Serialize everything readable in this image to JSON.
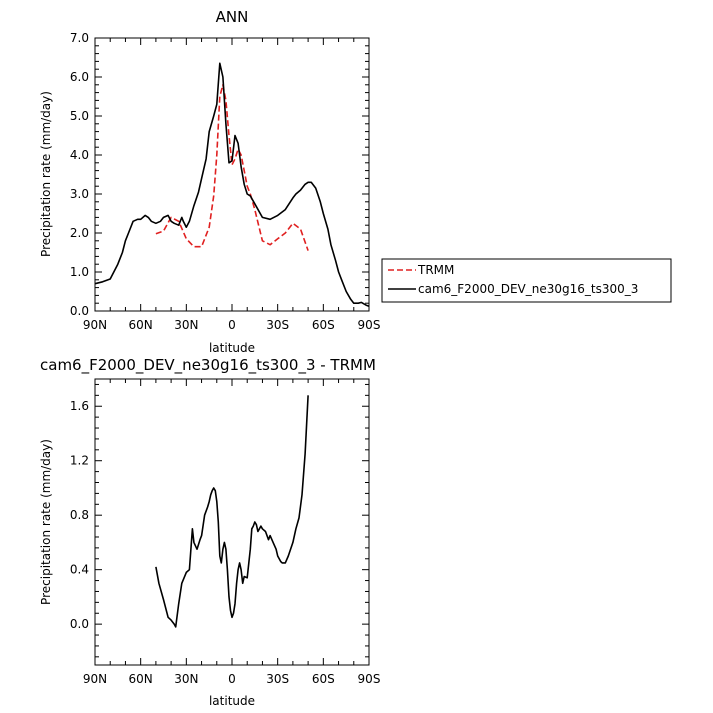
{
  "chart_data": [
    {
      "type": "line",
      "title": "ANN",
      "xlabel": "latitude",
      "ylabel": "Precipitation rate (mm/day)",
      "xlim": [
        90,
        -90
      ],
      "ylim": [
        0,
        7
      ],
      "xticks": [
        90,
        60,
        30,
        0,
        -30,
        -60,
        -90
      ],
      "xtick_labels": [
        "90N",
        "60N",
        "30N",
        "0",
        "30S",
        "60S",
        "90S"
      ],
      "yticks": [
        0,
        1,
        2,
        3,
        4,
        5,
        6,
        7
      ],
      "ytick_labels": [
        "0.0",
        "1.0",
        "2.0",
        "3.0",
        "4.0",
        "5.0",
        "6.0",
        "7.0"
      ],
      "legend_position": "right",
      "series": [
        {
          "name": "TRMM",
          "color": "#e02020",
          "dash": "dashed",
          "x": [
            50,
            45,
            40,
            35,
            30,
            25,
            20,
            15,
            12,
            10,
            8,
            6,
            4,
            2,
            0,
            -2,
            -4,
            -6,
            -8,
            -10,
            -12,
            -15,
            -20,
            -25,
            -30,
            -35,
            -40,
            -45,
            -50
          ],
          "y": [
            1.98,
            2.05,
            2.4,
            2.3,
            1.85,
            1.65,
            1.65,
            2.15,
            2.95,
            4.0,
            5.5,
            5.8,
            5.4,
            4.5,
            3.75,
            3.9,
            4.15,
            4.0,
            3.6,
            3.2,
            3.0,
            2.6,
            1.8,
            1.7,
            1.85,
            2.0,
            2.25,
            2.1,
            1.55
          ]
        },
        {
          "name": "cam6_F2000_DEV_ne30g16_ts300_3",
          "color": "#000000",
          "dash": "solid",
          "x": [
            90,
            85,
            80,
            75,
            72,
            70,
            68,
            65,
            62,
            60,
            57,
            55,
            53,
            50,
            47,
            45,
            42,
            40,
            38,
            35,
            33,
            32,
            30,
            28,
            25,
            22,
            20,
            17,
            15,
            12,
            10,
            8,
            6,
            4,
            2,
            0,
            -2,
            -4,
            -6,
            -8,
            -10,
            -12,
            -15,
            -20,
            -25,
            -30,
            -35,
            -40,
            -42,
            -45,
            -48,
            -50,
            -52,
            -55,
            -58,
            -60,
            -63,
            -65,
            -68,
            -70,
            -72,
            -75,
            -78,
            -80,
            -83,
            -85,
            -88,
            -90
          ],
          "y": [
            0.7,
            0.75,
            0.82,
            1.2,
            1.5,
            1.8,
            2.0,
            2.3,
            2.35,
            2.35,
            2.45,
            2.4,
            2.3,
            2.25,
            2.3,
            2.4,
            2.45,
            2.3,
            2.25,
            2.2,
            2.4,
            2.3,
            2.15,
            2.3,
            2.7,
            3.05,
            3.4,
            3.9,
            4.6,
            5.0,
            5.3,
            6.35,
            6.0,
            4.8,
            3.8,
            3.85,
            4.5,
            4.3,
            3.7,
            3.25,
            3.0,
            2.95,
            2.75,
            2.4,
            2.35,
            2.45,
            2.6,
            2.9,
            3.0,
            3.1,
            3.25,
            3.3,
            3.3,
            3.15,
            2.8,
            2.5,
            2.1,
            1.7,
            1.3,
            1.0,
            0.8,
            0.5,
            0.3,
            0.2,
            0.2,
            0.22,
            0.15,
            0.12
          ]
        }
      ]
    },
    {
      "type": "line",
      "title": "cam6_F2000_DEV_ne30g16_ts300_3 - TRMM",
      "xlabel": "latitude",
      "ylabel": "Precipitation rate (mm/day)",
      "xlim": [
        90,
        -90
      ],
      "ylim": [
        -0.3,
        1.8
      ],
      "xticks": [
        90,
        60,
        30,
        0,
        -30,
        -60,
        -90
      ],
      "xtick_labels": [
        "90N",
        "60N",
        "30N",
        "0",
        "30S",
        "60S",
        "90S"
      ],
      "yticks": [
        0,
        0.4,
        0.8,
        1.2,
        1.6
      ],
      "ytick_labels": [
        "0.0",
        "0.4",
        "0.8",
        "1.2",
        "1.6"
      ],
      "series": [
        {
          "color": "#000000",
          "dash": "solid",
          "x": [
            50,
            48,
            45,
            42,
            40,
            38,
            37,
            35,
            33,
            30,
            28,
            27,
            26,
            25,
            23,
            21,
            20,
            18,
            16,
            15,
            14,
            13,
            12,
            11,
            10,
            9,
            8,
            7,
            6,
            5,
            4,
            3,
            2,
            1,
            0,
            -1,
            -2,
            -3,
            -4,
            -5,
            -6,
            -7,
            -8,
            -10,
            -12,
            -13,
            -14,
            -15,
            -16,
            -17,
            -18,
            -19,
            -20,
            -22,
            -24,
            -25,
            -27,
            -29,
            -30,
            -31,
            -32,
            -33,
            -35,
            -37,
            -40,
            -42,
            -44,
            -46,
            -48,
            -50
          ],
          "y": [
            0.42,
            0.3,
            0.18,
            0.05,
            0.03,
            0.0,
            -0.02,
            0.15,
            0.3,
            0.38,
            0.4,
            0.55,
            0.7,
            0.6,
            0.55,
            0.62,
            0.65,
            0.8,
            0.86,
            0.9,
            0.95,
            0.98,
            1.0,
            0.98,
            0.9,
            0.75,
            0.5,
            0.45,
            0.55,
            0.6,
            0.55,
            0.4,
            0.2,
            0.1,
            0.05,
            0.08,
            0.15,
            0.3,
            0.4,
            0.45,
            0.4,
            0.3,
            0.35,
            0.34,
            0.55,
            0.7,
            0.72,
            0.75,
            0.73,
            0.68,
            0.7,
            0.72,
            0.7,
            0.68,
            0.62,
            0.65,
            0.6,
            0.55,
            0.5,
            0.48,
            0.46,
            0.45,
            0.45,
            0.5,
            0.6,
            0.7,
            0.78,
            0.95,
            1.25,
            1.68
          ]
        }
      ]
    }
  ]
}
